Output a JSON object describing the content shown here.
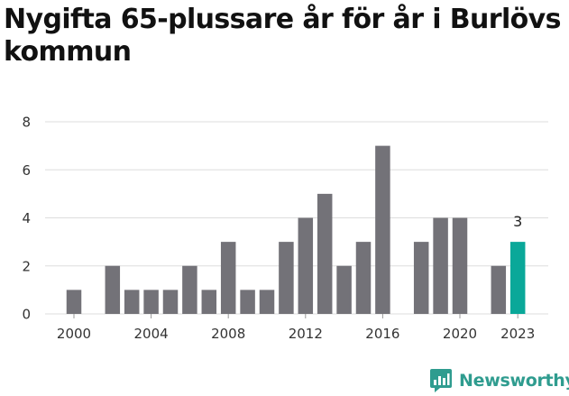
{
  "header": {
    "title": "Nygifta 65-plussare år för år i Burlövs kommun"
  },
  "brand": {
    "name": "Newsworthy"
  },
  "colors": {
    "bar": "#737278",
    "highlight": "#0aa899",
    "grid": "#dddddd",
    "brand": "#2f9c8f"
  },
  "chart_data": {
    "type": "bar",
    "title": "Nygifta 65-plussare år för år i Burlövs kommun",
    "xlabel": "",
    "ylabel": "",
    "ylim": [
      0,
      8
    ],
    "yticks": [
      0,
      2,
      4,
      6,
      8
    ],
    "xticks": [
      2000,
      2004,
      2008,
      2012,
      2016,
      2020,
      2023
    ],
    "categories": [
      2000,
      2001,
      2002,
      2003,
      2004,
      2005,
      2006,
      2007,
      2008,
      2009,
      2010,
      2011,
      2012,
      2013,
      2014,
      2015,
      2016,
      2017,
      2018,
      2019,
      2020,
      2021,
      2022,
      2023
    ],
    "values": [
      1,
      0,
      2,
      1,
      1,
      1,
      2,
      1,
      3,
      1,
      1,
      3,
      4,
      5,
      2,
      3,
      7,
      0,
      3,
      4,
      4,
      0,
      2,
      3
    ],
    "highlight": {
      "category": 2023,
      "label": "3"
    },
    "grid": true,
    "legend": "none"
  }
}
